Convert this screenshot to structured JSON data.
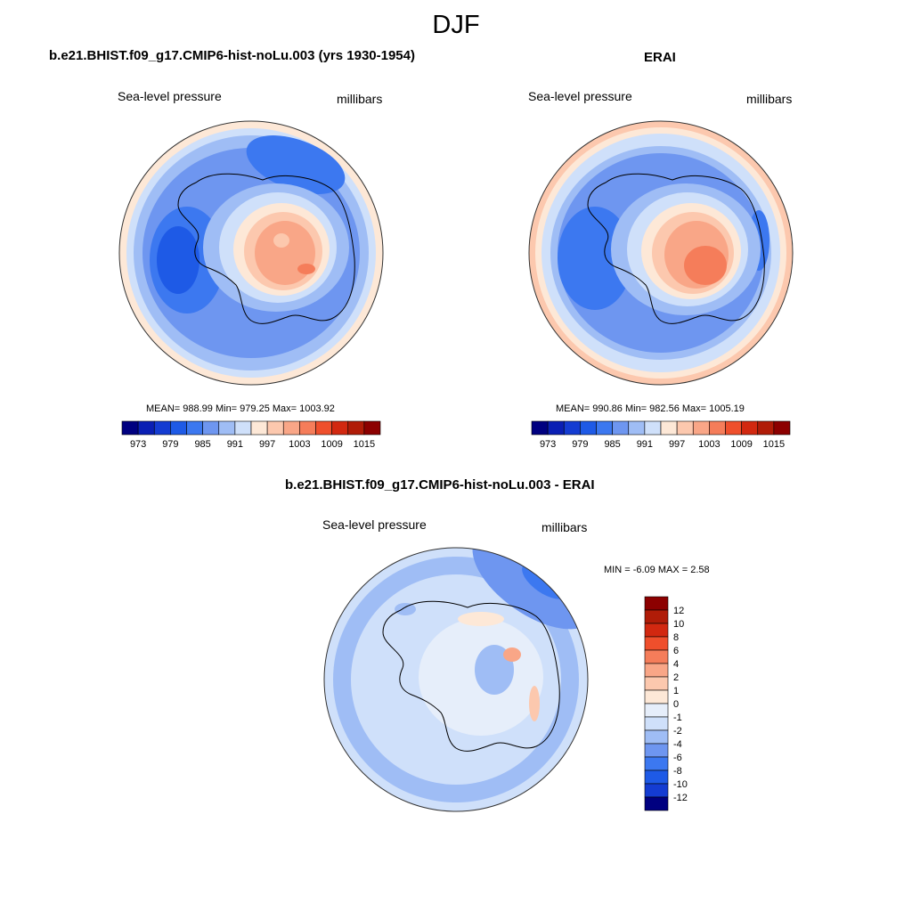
{
  "figure": {
    "title": "DJF"
  },
  "panels": [
    {
      "id": "model",
      "title": "b.e21.BHIST.f09_g17.CMIP6-hist-noLu.003 (yrs 1930-1954)",
      "left_label": "Sea-level pressure",
      "right_label": "millibars",
      "stats": "MEAN= 988.99  Min= 979.25  Max= 1003.92",
      "colorbar": {
        "orientation": "horizontal",
        "tick_labels": [
          "973",
          "979",
          "985",
          "991",
          "997",
          "1003",
          "1009",
          "1015"
        ],
        "colors": [
          "#000080",
          "#0a1fb4",
          "#143cd2",
          "#1e5ae6",
          "#3c78f0",
          "#6e96f0",
          "#9fbdf5",
          "#cfe0fa",
          "#fde8d7",
          "#fcc8ae",
          "#f9a687",
          "#f57d5a",
          "#ef4f2c",
          "#d22810",
          "#b01c08",
          "#8c0000"
        ]
      }
    },
    {
      "id": "obs",
      "title": "ERAI",
      "left_label": "Sea-level pressure",
      "right_label": "millibars",
      "stats": "MEAN= 990.86  Min= 982.56  Max= 1005.19",
      "colorbar": {
        "orientation": "horizontal",
        "tick_labels": [
          "973",
          "979",
          "985",
          "991",
          "997",
          "1003",
          "1009",
          "1015"
        ],
        "colors": [
          "#000080",
          "#0a1fb4",
          "#143cd2",
          "#1e5ae6",
          "#3c78f0",
          "#6e96f0",
          "#9fbdf5",
          "#cfe0fa",
          "#fde8d7",
          "#fcc8ae",
          "#f9a687",
          "#f57d5a",
          "#ef4f2c",
          "#d22810",
          "#b01c08",
          "#8c0000"
        ]
      }
    },
    {
      "id": "diff",
      "title": "b.e21.BHIST.f09_g17.CMIP6-hist-noLu.003 - ERAI",
      "left_label": "Sea-level pressure",
      "right_label": "millibars",
      "stats": "MIN =  -6.09 MAX =   2.58",
      "colorbar": {
        "orientation": "vertical",
        "tick_labels": [
          "12",
          "10",
          "8",
          "6",
          "4",
          "2",
          "1",
          "0",
          "-1",
          "-2",
          "-4",
          "-6",
          "-8",
          "-10",
          "-12"
        ],
        "colors": [
          "#8c0000",
          "#b01c08",
          "#d22810",
          "#ef4f2c",
          "#f57d5a",
          "#f9a687",
          "#fcc8ae",
          "#fde8d7",
          "#e6eefa",
          "#cfe0fa",
          "#9fbdf5",
          "#6e96f0",
          "#3c78f0",
          "#1e5ae6",
          "#143cd2",
          "#000080"
        ]
      }
    }
  ]
}
